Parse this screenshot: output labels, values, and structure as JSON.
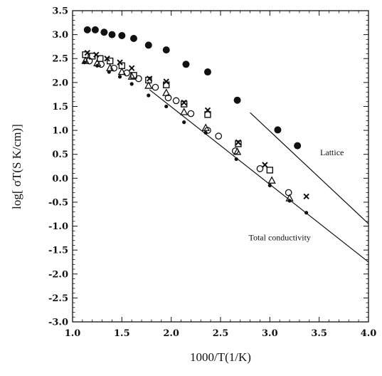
{
  "chart_data": {
    "type": "scatter",
    "xlabel": "1000/T(1/K)",
    "ylabel": "log[ σT(S K/cm)]",
    "xlim": [
      1.0,
      4.0
    ],
    "ylim": [
      -3.0,
      3.5
    ],
    "x_ticks": [
      "1.0",
      "1.5",
      "2.0",
      "2.5",
      "3.0",
      "3.5",
      "4.0"
    ],
    "y_ticks": [
      "3.5",
      "3.0",
      "2.5",
      "2.0",
      "1.5",
      "1.0",
      "0.5",
      "0.0",
      "-0.5",
      "-1.0",
      "-1.5",
      "-2.0",
      "-2.5",
      "-3.0"
    ],
    "grid": false,
    "legend": "none",
    "series": [
      {
        "marker": "filled-circle-large",
        "points": [
          {
            "x": 1.15,
            "y": 3.1
          },
          {
            "x": 1.23,
            "y": 3.1
          },
          {
            "x": 1.32,
            "y": 3.05
          },
          {
            "x": 1.4,
            "y": 3.0
          },
          {
            "x": 1.5,
            "y": 2.98
          },
          {
            "x": 1.62,
            "y": 2.92
          },
          {
            "x": 1.77,
            "y": 2.78
          },
          {
            "x": 1.95,
            "y": 2.68
          },
          {
            "x": 2.15,
            "y": 2.38
          },
          {
            "x": 2.37,
            "y": 2.22
          },
          {
            "x": 2.67,
            "y": 1.63
          },
          {
            "x": 3.08,
            "y": 1.01
          },
          {
            "x": 3.28,
            "y": 0.68
          }
        ]
      },
      {
        "marker": "open-square",
        "points": [
          {
            "x": 1.13,
            "y": 2.58
          },
          {
            "x": 1.2,
            "y": 2.55
          },
          {
            "x": 1.28,
            "y": 2.5
          },
          {
            "x": 1.38,
            "y": 2.45
          },
          {
            "x": 1.5,
            "y": 2.35
          },
          {
            "x": 1.62,
            "y": 2.15
          },
          {
            "x": 1.77,
            "y": 2.05
          },
          {
            "x": 1.95,
            "y": 1.95
          },
          {
            "x": 2.13,
            "y": 1.55
          },
          {
            "x": 2.37,
            "y": 1.33
          },
          {
            "x": 2.68,
            "y": 0.72
          },
          {
            "x": 3.0,
            "y": 0.17
          }
        ]
      },
      {
        "marker": "cross",
        "points": [
          {
            "x": 1.15,
            "y": 2.62
          },
          {
            "x": 1.24,
            "y": 2.58
          },
          {
            "x": 1.35,
            "y": 2.5
          },
          {
            "x": 1.48,
            "y": 2.42
          },
          {
            "x": 1.6,
            "y": 2.3
          },
          {
            "x": 1.78,
            "y": 2.08
          },
          {
            "x": 1.95,
            "y": 2.02
          },
          {
            "x": 2.13,
            "y": 1.58
          },
          {
            "x": 2.37,
            "y": 1.42
          },
          {
            "x": 2.68,
            "y": 0.75
          },
          {
            "x": 2.95,
            "y": 0.28
          },
          {
            "x": 3.37,
            "y": -0.38
          }
        ]
      },
      {
        "marker": "open-triangle",
        "points": [
          {
            "x": 1.13,
            "y": 2.45
          },
          {
            "x": 1.25,
            "y": 2.4
          },
          {
            "x": 1.38,
            "y": 2.3
          },
          {
            "x": 1.5,
            "y": 2.22
          },
          {
            "x": 1.6,
            "y": 2.12
          },
          {
            "x": 1.77,
            "y": 1.93
          },
          {
            "x": 1.95,
            "y": 1.78
          },
          {
            "x": 2.13,
            "y": 1.38
          },
          {
            "x": 2.35,
            "y": 1.05
          },
          {
            "x": 2.67,
            "y": 0.55
          },
          {
            "x": 3.02,
            "y": -0.05
          },
          {
            "x": 3.2,
            "y": -0.42
          }
        ]
      },
      {
        "marker": "open-circle",
        "points": [
          {
            "x": 1.17,
            "y": 2.45
          },
          {
            "x": 1.29,
            "y": 2.38
          },
          {
            "x": 1.42,
            "y": 2.3
          },
          {
            "x": 1.55,
            "y": 2.2
          },
          {
            "x": 1.67,
            "y": 2.08
          },
          {
            "x": 1.84,
            "y": 1.9
          },
          {
            "x": 1.97,
            "y": 1.68
          },
          {
            "x": 2.05,
            "y": 1.62
          },
          {
            "x": 2.2,
            "y": 1.35
          },
          {
            "x": 2.37,
            "y": 1.0
          },
          {
            "x": 2.48,
            "y": 0.88
          },
          {
            "x": 2.65,
            "y": 0.57
          },
          {
            "x": 2.9,
            "y": 0.2
          },
          {
            "x": 3.19,
            "y": -0.3
          }
        ]
      },
      {
        "marker": "filled-circle-small",
        "points": [
          {
            "x": 1.12,
            "y": 2.42
          },
          {
            "x": 1.25,
            "y": 2.35
          },
          {
            "x": 1.37,
            "y": 2.22
          },
          {
            "x": 1.48,
            "y": 2.12
          },
          {
            "x": 1.6,
            "y": 1.97
          },
          {
            "x": 1.77,
            "y": 1.73
          },
          {
            "x": 1.95,
            "y": 1.5
          },
          {
            "x": 2.13,
            "y": 1.17
          },
          {
            "x": 2.35,
            "y": 0.95
          },
          {
            "x": 2.66,
            "y": 0.4
          },
          {
            "x": 3.0,
            "y": -0.15
          },
          {
            "x": 3.2,
            "y": -0.47
          },
          {
            "x": 3.37,
            "y": -0.72
          }
        ]
      }
    ],
    "lines": [
      {
        "label": "Total conductivity",
        "from": [
          1.78,
          1.85
        ],
        "to": [
          4.0,
          -1.75
        ]
      },
      {
        "label": "Lattice",
        "from": [
          2.8,
          1.37
        ],
        "to": [
          4.0,
          -0.95
        ]
      }
    ],
    "annotations": [
      "Lattice",
      "Total conductivity"
    ]
  }
}
